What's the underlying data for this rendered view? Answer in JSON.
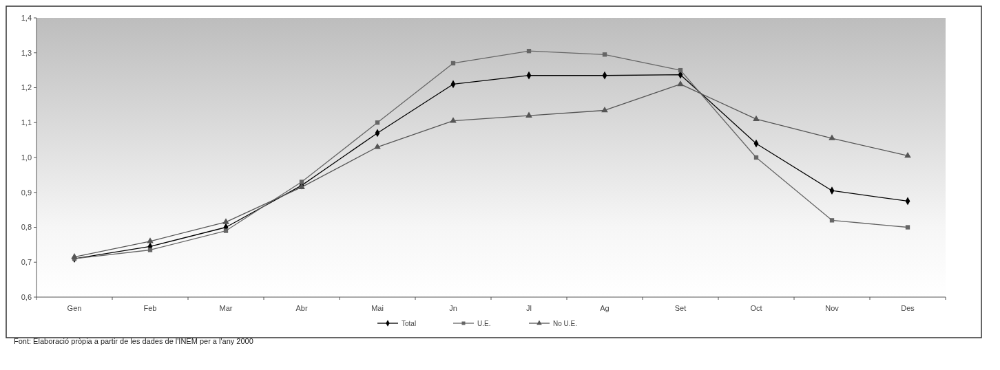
{
  "chart_data": {
    "type": "line",
    "categories": [
      "Gen",
      "Feb",
      "Mar",
      "Abr",
      "Mai",
      "Jn",
      "Jl",
      "Ag",
      "Set",
      "Oct",
      "Nov",
      "Des"
    ],
    "series": [
      {
        "name": "Total",
        "color": "#000000",
        "marker": "diamond",
        "values": [
          0.71,
          0.745,
          0.8,
          0.92,
          1.07,
          1.21,
          1.235,
          1.235,
          1.237,
          1.04,
          0.905,
          0.875
        ]
      },
      {
        "name": "U.E.",
        "color": "#666666",
        "marker": "square",
        "values": [
          0.71,
          0.735,
          0.79,
          0.93,
          1.1,
          1.27,
          1.305,
          1.295,
          1.25,
          1.0,
          0.82,
          0.8
        ]
      },
      {
        "name": "No U.E.",
        "color": "#555555",
        "marker": "triangle",
        "values": [
          0.715,
          0.76,
          0.815,
          0.915,
          1.03,
          1.105,
          1.12,
          1.135,
          1.21,
          1.11,
          1.055,
          1.005
        ]
      }
    ],
    "ylim": [
      0.6,
      1.4
    ],
    "yticks": [
      {
        "value": 0.6,
        "label": "0,6"
      },
      {
        "value": 0.7,
        "label": "0,7"
      },
      {
        "value": 0.8,
        "label": "0,8"
      },
      {
        "value": 0.9,
        "label": "0,9"
      },
      {
        "value": 1.0,
        "label": "1,0"
      },
      {
        "value": 1.1,
        "label": "1,1"
      },
      {
        "value": 1.2,
        "label": "1,2"
      },
      {
        "value": 1.3,
        "label": "1,3"
      },
      {
        "value": 1.4,
        "label": "1,4"
      }
    ],
    "legend": "bottom",
    "grid": false,
    "annotations": [
      "Font: Elaboració pròpia a partir de les dades de l'INEM per a l'any 2000"
    ]
  }
}
